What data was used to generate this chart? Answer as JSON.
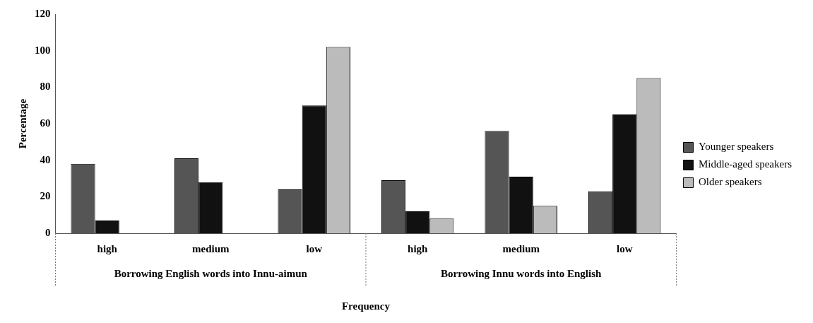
{
  "chart_data": {
    "type": "bar",
    "categories": [
      "high",
      "medium",
      "low",
      "high",
      "medium",
      "low"
    ],
    "series": [
      {
        "name": "Younger speakers",
        "color": "#555555",
        "values": [
          38,
          41,
          24,
          29,
          56,
          23
        ]
      },
      {
        "name": "Middle-aged speakers",
        "color": "#111111",
        "values": [
          7,
          28,
          70,
          12,
          31,
          65
        ]
      },
      {
        "name": "Older speakers",
        "color": "#bbbbbb",
        "values": [
          null,
          null,
          102,
          8,
          15,
          85
        ]
      }
    ],
    "xlabel": "Frequency",
    "ylabel": "Percentage",
    "ylim": [
      0,
      120
    ],
    "yticks": [
      0,
      20,
      40,
      60,
      80,
      100,
      120
    ],
    "annotations": [
      "Borrowing English words into Innu-aimun",
      "Borrowing Innu words into English"
    ],
    "grid": false,
    "legend": "right"
  }
}
